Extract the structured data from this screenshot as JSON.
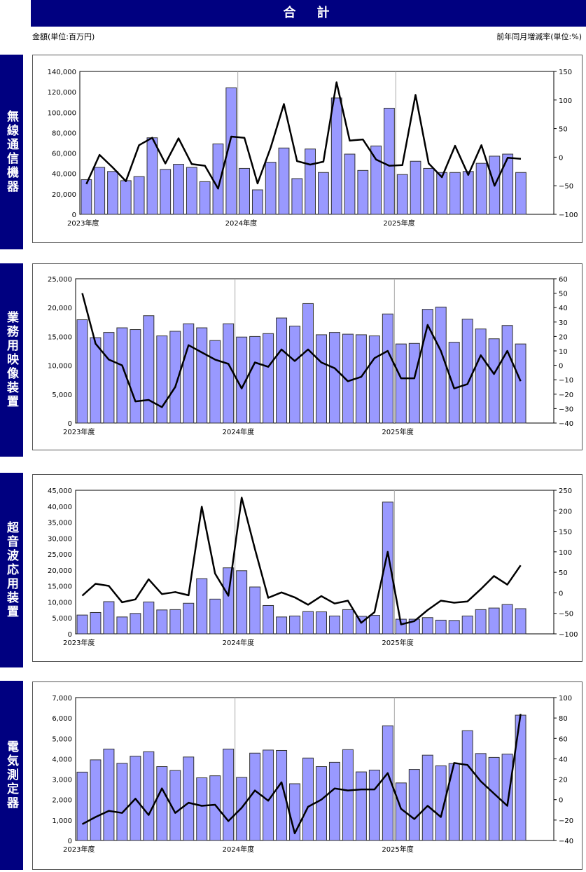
{
  "header": {
    "title": "合　計"
  },
  "units": {
    "left": "金額(単位:百万円)",
    "right": "前年同月増減率(単位:%)"
  },
  "colors": {
    "header": "#000080",
    "bar": "#9999ff",
    "line": "#000000"
  },
  "chart_data": [
    {
      "type": "bar+line",
      "category_label": "無線通信機器",
      "fiscal_year_labels": [
        "2023年度",
        "2024年度",
        "2025年度"
      ],
      "ylim_left": [
        0,
        140000
      ],
      "yticks_left": [
        "0",
        "20,000",
        "40,000",
        "60,000",
        "80,000",
        "100,000",
        "120,000",
        "140,000"
      ],
      "ylim_right": [
        -100,
        150
      ],
      "yticks_right": [
        "-100",
        "-50",
        "0",
        "50",
        "100",
        "150"
      ],
      "bars": [
        34000,
        46000,
        42000,
        33000,
        37000,
        75000,
        44000,
        49000,
        46000,
        32000,
        69000,
        124000,
        45000,
        24000,
        51000,
        65000,
        35000,
        64000,
        41000,
        114000,
        59000,
        43000,
        67000,
        104000,
        39000,
        52000,
        45000,
        41000,
        41000,
        42000,
        50000,
        57000,
        59000,
        41000
      ],
      "line": [
        -47,
        4,
        -18,
        -42,
        21,
        34,
        -11,
        33,
        -12,
        -15,
        -55,
        36,
        34,
        -46,
        17,
        93,
        -7,
        -13,
        -8,
        131,
        29,
        31,
        -4,
        -15,
        -14,
        109,
        -11,
        -35,
        20,
        -31,
        21,
        -50,
        -1,
        -3
      ]
    },
    {
      "type": "bar+line",
      "category_label": "業務用映像装置",
      "fiscal_year_labels": [
        "2023年度",
        "2024年度",
        "2025年度"
      ],
      "ylim_left": [
        0,
        25000
      ],
      "yticks_left": [
        "0",
        "5,000",
        "10,000",
        "15,000",
        "20,000",
        "25,000"
      ],
      "ylim_right": [
        -40,
        60
      ],
      "yticks_right": [
        "-40",
        "-30",
        "-20",
        "-10",
        "0",
        "10",
        "20",
        "30",
        "40",
        "50",
        "60"
      ],
      "bars": [
        17900,
        14800,
        15700,
        16500,
        16200,
        18600,
        15100,
        15900,
        17200,
        16500,
        14300,
        17200,
        14900,
        15000,
        15500,
        18200,
        16800,
        20700,
        15300,
        15700,
        15400,
        15300,
        15100,
        18900,
        13700,
        13800,
        19700,
        20100,
        14000,
        18000,
        16300,
        14600,
        16900,
        13700
      ],
      "line": [
        50,
        15,
        4,
        0,
        -25,
        -24,
        -29,
        -15,
        14,
        9,
        4,
        1,
        -16,
        2,
        -1,
        11,
        3,
        11,
        2,
        -2,
        -11,
        -8,
        5,
        10,
        -9,
        -9,
        28,
        10,
        -16,
        -13,
        7,
        -6,
        10,
        -11
      ]
    },
    {
      "type": "bar+line",
      "category_label": "超音波応用装置",
      "fiscal_year_labels": [
        "2023年度",
        "2024年度",
        "2025年度"
      ],
      "ylim_left": [
        0,
        45000
      ],
      "yticks_left": [
        "0",
        "5,000",
        "10,000",
        "15,000",
        "20,000",
        "25,000",
        "30,000",
        "35,000",
        "40,000",
        "45,000"
      ],
      "ylim_right": [
        -100,
        250
      ],
      "yticks_right": [
        "-100",
        "-50",
        "0",
        "50",
        "100",
        "150",
        "200",
        "250"
      ],
      "bars": [
        5900,
        6700,
        10100,
        5300,
        6400,
        10000,
        7500,
        7600,
        9600,
        17300,
        10900,
        20700,
        19800,
        14700,
        8900,
        5300,
        5600,
        7000,
        6900,
        5600,
        7600,
        5500,
        5800,
        41300,
        4600,
        4600,
        5100,
        4300,
        4200,
        5600,
        7600,
        8100,
        9200,
        7900
      ],
      "line": [
        -7,
        22,
        17,
        -23,
        -16,
        33,
        -3,
        2,
        -6,
        210,
        47,
        -7,
        232,
        107,
        -12,
        1,
        -11,
        -29,
        -8,
        -26,
        -19,
        -73,
        -47,
        100,
        -77,
        -69,
        -42,
        -19,
        -24,
        -21,
        9,
        41,
        20,
        67
      ]
    },
    {
      "type": "bar+line",
      "category_label": "電気測定器",
      "fiscal_year_labels": [
        "2023年度",
        "2024年度",
        "2025年度"
      ],
      "ylim_left": [
        0,
        7000
      ],
      "yticks_left": [
        "0",
        "1,000",
        "2,000",
        "3,000",
        "4,000",
        "5,000",
        "6,000",
        "7,000"
      ],
      "ylim_right": [
        -40,
        100
      ],
      "yticks_right": [
        "-40",
        "-20",
        "0",
        "20",
        "40",
        "60",
        "80",
        "100"
      ],
      "bars": [
        3350,
        3950,
        4480,
        3780,
        4130,
        4350,
        3620,
        3430,
        4090,
        3070,
        3170,
        4480,
        3090,
        4280,
        4430,
        4410,
        2780,
        4040,
        3620,
        3830,
        4450,
        3360,
        3450,
        5620,
        2820,
        3480,
        4180,
        3660,
        3770,
        5380,
        4260,
        4070,
        4230,
        6140
      ],
      "line": [
        -24,
        -17,
        -11,
        -13,
        1,
        -15,
        11,
        -13,
        -3,
        -6,
        -5,
        -21,
        -8,
        9,
        -1,
        17,
        -33,
        -7,
        0,
        11,
        9,
        10,
        10,
        26,
        -9,
        -19,
        -6,
        -17,
        36,
        34,
        18,
        6,
        -6,
        84
      ]
    }
  ]
}
